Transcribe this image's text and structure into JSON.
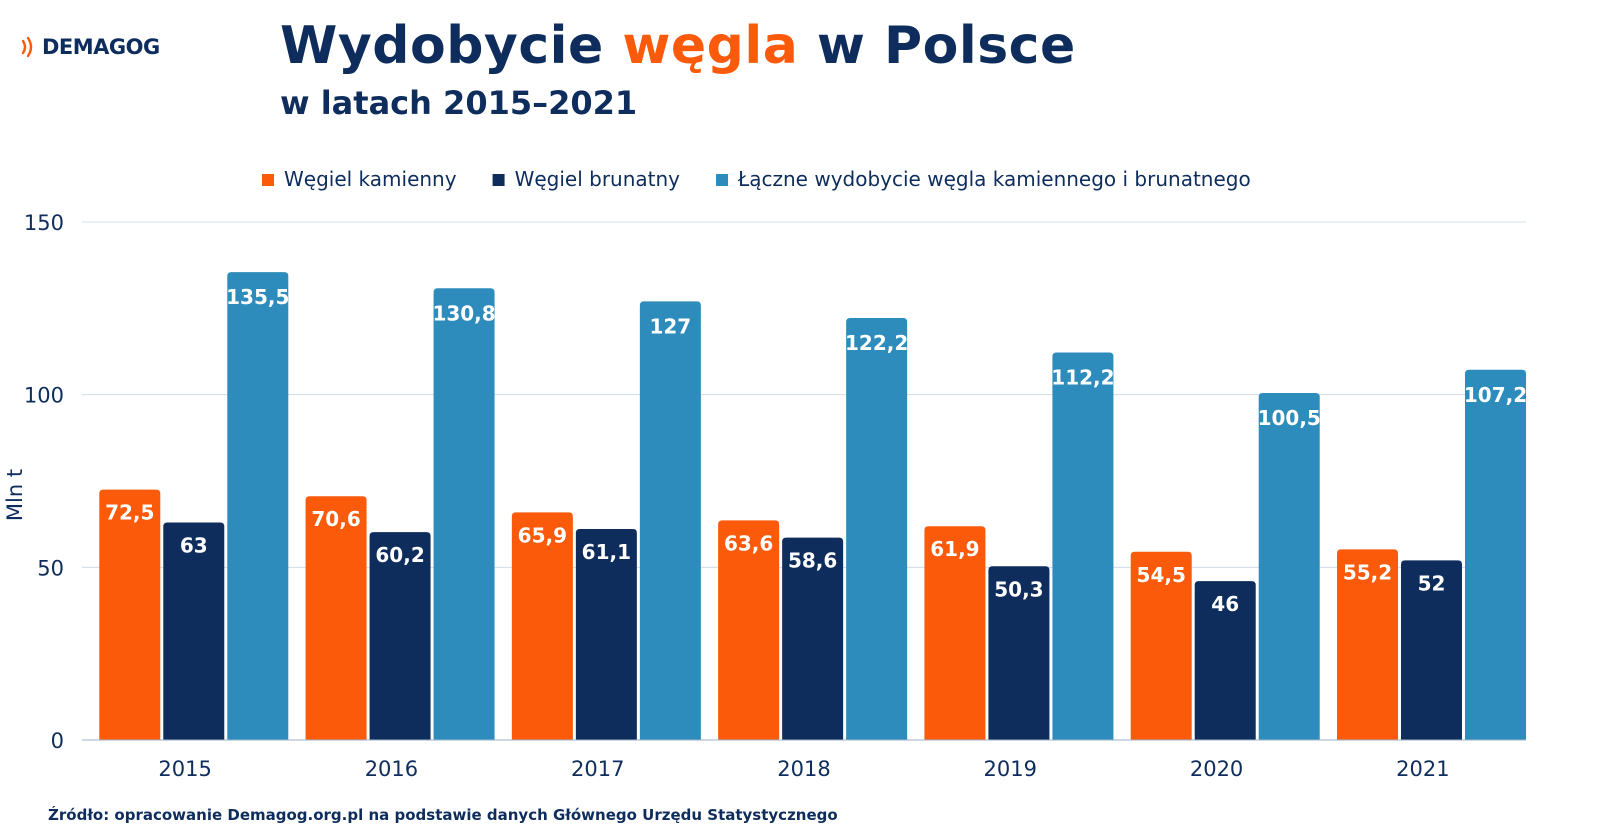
{
  "branding": {
    "logo_text": "DEMAGOG",
    "logo_color": "#fa5a0a"
  },
  "heading": {
    "title_before": "Wydobycie ",
    "title_highlight": "węgla",
    "title_after": " w Polsce",
    "subtitle": "w latach 2015–2021"
  },
  "chart_data": {
    "type": "bar",
    "categories": [
      "2015",
      "2016",
      "2017",
      "2018",
      "2019",
      "2020",
      "2021"
    ],
    "series": [
      {
        "name": "Węgiel kamienny",
        "color": "#fa5a0a",
        "values": [
          72.5,
          70.6,
          65.9,
          63.6,
          61.9,
          54.5,
          55.2
        ],
        "labels": [
          "72,5",
          "70,6",
          "65,9",
          "63,6",
          "61,9",
          "54,5",
          "55,2"
        ]
      },
      {
        "name": "Węgiel brunatny",
        "color": "#0e2d5c",
        "values": [
          63,
          60.2,
          61.1,
          58.6,
          50.3,
          46,
          52
        ],
        "labels": [
          "63",
          "60,2",
          "61,1",
          "58,6",
          "50,3",
          "46",
          "52"
        ]
      },
      {
        "name": "Łączne wydobycie węgla kamiennego i brunatnego",
        "color": "#2d8cbb",
        "values": [
          135.5,
          130.8,
          127,
          122.2,
          112.2,
          100.5,
          107.2
        ],
        "labels": [
          "135,5",
          "130,8",
          "127",
          "122,2",
          "112,2",
          "100,5",
          "107,2"
        ]
      }
    ],
    "ylabel": "Mln t",
    "xlabel": "",
    "ylim": [
      0,
      150
    ],
    "yticks": [
      0,
      50,
      100,
      150
    ],
    "grid": true,
    "legend_position": "top"
  },
  "source": "Źródło: opracowanie Demagog.org.pl na podstawie danych Głównego Urzędu Statystycznego"
}
